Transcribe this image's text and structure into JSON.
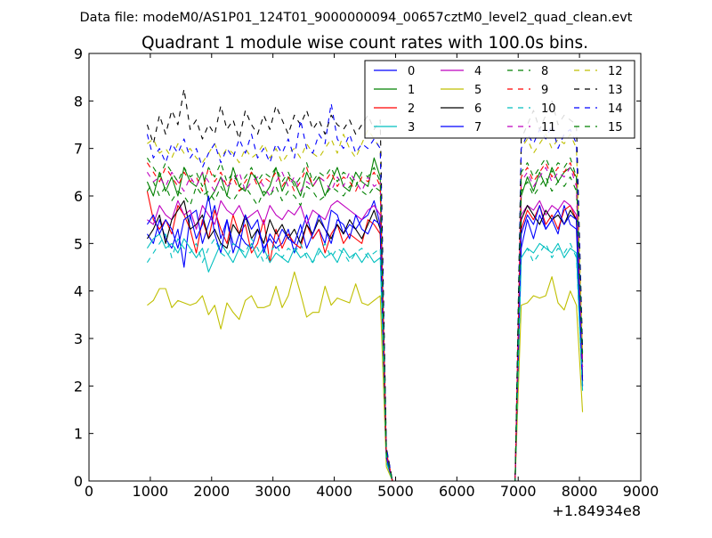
{
  "suptitle": "Data file: modeM0/AS1P01_124T01_9000000094_00657cztM0_level2_quad_clean.evt",
  "chart_data": {
    "type": "line",
    "title": "Quadrant 1 module wise count rates with 100.0s bins.",
    "xlabel": "",
    "ylabel": "",
    "x_offset_label": "+1.84934e8",
    "xlim": [
      0,
      9000
    ],
    "ylim": [
      0,
      9
    ],
    "x_ticks": [
      0,
      1000,
      2000,
      3000,
      4000,
      5000,
      6000,
      7000,
      8000,
      9000
    ],
    "x_tick_labels": [
      "0",
      "1000",
      "2000",
      "3000",
      "4000",
      "5000",
      "6000",
      "7000",
      "8000",
      "9000"
    ],
    "y_ticks": [
      0,
      1,
      2,
      3,
      4,
      5,
      6,
      7,
      8,
      9
    ],
    "y_tick_labels": [
      "0",
      "1",
      "2",
      "3",
      "4",
      "5",
      "6",
      "7",
      "8",
      "9"
    ],
    "grid": false,
    "legend_placement": "top-right",
    "legend_columns": 4,
    "x": [
      950,
      1050,
      1150,
      1250,
      1350,
      1450,
      1550,
      1650,
      1750,
      1850,
      1950,
      2050,
      2150,
      2250,
      2350,
      2450,
      2550,
      2650,
      2750,
      2850,
      2950,
      3050,
      3150,
      3250,
      3350,
      3450,
      3550,
      3650,
      3750,
      3850,
      3950,
      4050,
      4150,
      4250,
      4350,
      4450,
      4550,
      4650,
      4750,
      4850,
      4950,
      5950,
      6950,
      7050,
      7150,
      7250,
      7350,
      7450,
      7550,
      7650,
      7750,
      7850,
      7950,
      8050
    ],
    "series": [
      {
        "name": "0",
        "color": "#0000ff",
        "dash": "solid",
        "values": [
          5.2,
          5.0,
          5.5,
          5.1,
          4.9,
          5.3,
          4.5,
          5.6,
          5.7,
          5.0,
          5.4,
          5.8,
          5.1,
          5.5,
          4.8,
          5.2,
          5.0,
          4.9,
          5.3,
          4.9,
          5.1,
          4.9,
          5.0,
          5.3,
          4.8,
          5.2,
          5.6,
          5.1,
          5.3,
          5.0,
          5.7,
          5.6,
          5.2,
          5.4,
          5.3,
          5.5,
          5.6,
          5.9,
          5.4,
          0.5,
          0.0,
          0.0,
          0.0,
          4.9,
          5.5,
          5.1,
          5.6,
          5.3,
          5.5,
          5.2,
          5.8,
          5.4,
          5.3,
          2.0
        ]
      },
      {
        "name": "1",
        "color": "#008000",
        "dash": "solid",
        "values": [
          6.3,
          6.0,
          6.5,
          6.1,
          6.4,
          6.0,
          6.6,
          6.3,
          6.2,
          6.5,
          5.9,
          6.1,
          6.4,
          6.0,
          6.6,
          6.2,
          6.1,
          6.5,
          6.3,
          6.0,
          6.2,
          6.6,
          6.1,
          6.4,
          6.3,
          6.0,
          6.5,
          6.2,
          6.4,
          6.0,
          6.3,
          6.6,
          6.2,
          6.1,
          6.5,
          6.3,
          6.2,
          6.8,
          6.4,
          0.6,
          0.0,
          0.0,
          0.0,
          6.0,
          6.4,
          6.1,
          6.5,
          6.2,
          6.6,
          6.3,
          6.5,
          6.6,
          6.4,
          2.5
        ]
      },
      {
        "name": "2",
        "color": "#ff0000",
        "dash": "solid",
        "values": [
          6.1,
          5.5,
          5.3,
          5.5,
          5.2,
          5.8,
          5.6,
          5.3,
          4.8,
          5.5,
          5.1,
          5.7,
          5.3,
          5.0,
          5.6,
          5.2,
          5.4,
          4.8,
          5.0,
          5.5,
          4.6,
          5.3,
          4.9,
          5.2,
          5.0,
          4.9,
          5.4,
          5.1,
          5.3,
          4.8,
          5.2,
          5.4,
          5.0,
          5.2,
          5.1,
          5.0,
          5.5,
          5.4,
          5.2,
          0.5,
          0.0,
          0.0,
          0.0,
          5.3,
          5.7,
          5.5,
          5.8,
          5.4,
          5.6,
          5.3,
          5.7,
          5.8,
          5.5,
          2.1
        ]
      },
      {
        "name": "3",
        "color": "#00bfbf",
        "dash": "solid",
        "values": [
          4.9,
          5.1,
          5.2,
          4.9,
          5.0,
          4.8,
          5.1,
          4.9,
          4.7,
          4.9,
          4.4,
          4.7,
          5.0,
          4.8,
          4.6,
          4.9,
          4.7,
          5.0,
          4.7,
          4.9,
          4.6,
          4.8,
          4.7,
          4.6,
          4.9,
          4.7,
          4.8,
          4.6,
          4.9,
          4.7,
          4.8,
          4.6,
          4.9,
          4.7,
          4.8,
          4.6,
          4.8,
          4.6,
          4.7,
          0.4,
          0.0,
          0.0,
          0.0,
          4.7,
          4.9,
          4.8,
          5.0,
          4.9,
          4.8,
          5.0,
          4.7,
          4.9,
          4.8,
          1.9
        ]
      },
      {
        "name": "4",
        "color": "#bf00bf",
        "dash": "solid",
        "values": [
          5.5,
          5.4,
          5.8,
          5.6,
          5.5,
          5.9,
          5.6,
          5.7,
          5.3,
          5.8,
          5.6,
          5.4,
          5.9,
          5.7,
          5.6,
          5.8,
          5.5,
          5.6,
          5.7,
          5.4,
          5.8,
          5.6,
          5.5,
          5.7,
          5.6,
          5.8,
          5.4,
          5.7,
          5.6,
          5.5,
          5.8,
          5.9,
          5.8,
          5.7,
          5.6,
          5.5,
          5.7,
          5.8,
          5.6,
          0.5,
          0.0,
          0.0,
          0.0,
          5.6,
          5.8,
          5.7,
          5.9,
          5.6,
          5.8,
          5.7,
          5.9,
          5.8,
          5.6,
          2.2
        ]
      },
      {
        "name": "5",
        "color": "#bfbf00",
        "dash": "solid",
        "values": [
          3.7,
          3.8,
          4.05,
          4.05,
          3.65,
          3.8,
          3.75,
          3.7,
          3.75,
          3.9,
          3.5,
          3.7,
          3.2,
          3.75,
          3.55,
          3.4,
          3.8,
          3.9,
          3.65,
          3.65,
          3.7,
          4.1,
          3.65,
          3.9,
          4.4,
          3.95,
          3.45,
          3.55,
          3.55,
          4.1,
          3.7,
          3.85,
          3.8,
          3.75,
          4.15,
          3.75,
          3.7,
          3.8,
          3.9,
          0.3,
          0.0,
          0.0,
          0.0,
          3.7,
          3.75,
          3.9,
          3.85,
          3.9,
          4.3,
          3.75,
          3.6,
          4.0,
          3.7,
          1.45
        ]
      },
      {
        "name": "6",
        "color": "#000000",
        "dash": "solid",
        "values": [
          5.1,
          5.3,
          5.6,
          5.0,
          5.5,
          5.7,
          5.9,
          5.3,
          5.4,
          5.6,
          5.1,
          5.3,
          5.0,
          4.9,
          5.4,
          5.2,
          5.6,
          5.1,
          5.3,
          5.0,
          5.5,
          5.2,
          5.4,
          5.1,
          5.3,
          5.0,
          5.4,
          5.2,
          5.5,
          5.3,
          5.1,
          5.4,
          5.2,
          5.5,
          5.3,
          5.1,
          5.4,
          5.7,
          5.3,
          0.5,
          0.0,
          0.0,
          0.0,
          5.5,
          5.8,
          5.6,
          5.4,
          5.7,
          5.5,
          5.6,
          5.4,
          5.7,
          5.5,
          2.1
        ]
      },
      {
        "name": "7",
        "color": "#0000ff",
        "dash": "solid",
        "values": [
          5.4,
          5.6,
          5.2,
          5.5,
          5.3,
          4.9,
          5.5,
          5.6,
          5.1,
          5.4,
          6.0,
          5.2,
          4.8,
          5.5,
          5.0,
          4.9,
          5.6,
          5.3,
          5.5,
          4.8,
          5.2,
          5.0,
          5.3,
          5.1,
          5.0,
          5.4,
          4.9,
          5.2,
          5.6,
          5.3,
          5.0,
          5.5,
          5.4,
          5.1,
          5.6,
          5.3,
          5.2,
          5.5,
          5.4,
          0.5,
          0.0,
          0.0,
          0.0,
          5.2,
          5.6,
          5.4,
          5.8,
          5.3,
          5.5,
          5.7,
          5.4,
          5.6,
          5.5,
          2.0
        ]
      },
      {
        "name": "8",
        "color": "#008000",
        "dash": "dashed",
        "values": [
          6.1,
          6.3,
          6.0,
          6.2,
          5.9,
          6.1,
          6.0,
          5.8,
          6.2,
          6.0,
          6.1,
          5.9,
          6.2,
          6.0,
          5.9,
          6.1,
          6.2,
          6.0,
          5.8,
          6.1,
          6.0,
          6.2,
          5.9,
          6.1,
          6.0,
          5.8,
          6.2,
          6.1,
          5.9,
          6.0,
          6.2,
          6.1,
          6.0,
          6.2,
          6.3,
          6.1,
          6.0,
          6.2,
          6.1,
          0.6,
          0.0,
          0.0,
          0.0,
          6.1,
          6.3,
          6.0,
          6.2,
          6.4,
          6.1,
          6.3,
          6.2,
          6.4,
          6.1,
          2.4
        ]
      },
      {
        "name": "9",
        "color": "#ff0000",
        "dash": "dashed",
        "values": [
          6.7,
          6.5,
          6.3,
          6.6,
          6.4,
          6.2,
          6.5,
          6.3,
          6.4,
          6.1,
          6.6,
          6.3,
          6.5,
          6.2,
          6.4,
          6.1,
          6.3,
          6.5,
          6.2,
          6.4,
          6.3,
          6.5,
          6.2,
          6.4,
          6.1,
          6.3,
          6.6,
          6.2,
          6.4,
          6.3,
          6.5,
          6.2,
          6.4,
          6.3,
          6.1,
          6.4,
          6.3,
          6.5,
          6.2,
          0.6,
          0.0,
          0.0,
          0.0,
          6.4,
          6.6,
          6.3,
          6.5,
          6.7,
          6.4,
          6.6,
          6.5,
          6.7,
          6.3,
          2.5
        ]
      },
      {
        "name": "10",
        "color": "#00bfbf",
        "dash": "dashed",
        "values": [
          4.6,
          4.8,
          5.0,
          5.2,
          4.7,
          5.1,
          4.9,
          4.8,
          5.0,
          4.6,
          4.9,
          5.1,
          4.8,
          4.7,
          5.0,
          4.9,
          4.8,
          5.1,
          4.9,
          4.6,
          4.8,
          5.0,
          4.7,
          4.9,
          4.8,
          5.0,
          4.7,
          4.6,
          4.8,
          5.0,
          4.7,
          4.9,
          4.8,
          4.6,
          4.8,
          4.9,
          4.7,
          4.8,
          4.9,
          0.4,
          0.0,
          0.0,
          0.0,
          4.7,
          4.9,
          4.6,
          4.8,
          5.0,
          4.7,
          4.9,
          4.8,
          5.0,
          4.7,
          1.9
        ]
      },
      {
        "name": "11",
        "color": "#bf00bf",
        "dash": "dashed",
        "values": [
          6.5,
          6.3,
          6.4,
          6.2,
          6.5,
          6.3,
          6.1,
          6.4,
          6.2,
          6.5,
          6.3,
          6.1,
          6.4,
          6.2,
          6.3,
          6.5,
          6.1,
          6.3,
          6.4,
          6.2,
          6.0,
          6.3,
          6.5,
          6.2,
          6.4,
          6.1,
          6.3,
          6.2,
          6.4,
          6.3,
          6.1,
          6.4,
          6.2,
          6.5,
          6.3,
          6.1,
          6.4,
          6.2,
          6.3,
          0.6,
          0.0,
          0.0,
          0.0,
          6.3,
          6.5,
          6.2,
          6.4,
          6.6,
          6.3,
          6.5,
          6.4,
          6.6,
          6.2,
          2.4
        ]
      },
      {
        "name": "12",
        "color": "#bfbf00",
        "dash": "dashed",
        "values": [
          7.1,
          7.2,
          6.9,
          7.0,
          6.8,
          7.1,
          6.9,
          7.0,
          6.8,
          6.7,
          6.9,
          7.1,
          6.8,
          7.0,
          6.9,
          6.7,
          7.0,
          6.8,
          6.9,
          7.1,
          6.8,
          7.0,
          6.7,
          6.9,
          7.0,
          6.8,
          7.1,
          6.9,
          6.8,
          7.0,
          7.2,
          6.9,
          7.3,
          7.0,
          6.8,
          7.1,
          7.4,
          7.2,
          7.0,
          0.7,
          0.0,
          0.0,
          0.0,
          7.0,
          7.2,
          6.9,
          7.1,
          7.3,
          7.0,
          7.2,
          7.1,
          7.3,
          7.0,
          2.7
        ]
      },
      {
        "name": "13",
        "color": "#000000",
        "dash": "dashed",
        "values": [
          7.5,
          7.1,
          7.7,
          7.3,
          7.8,
          7.5,
          8.25,
          7.4,
          7.6,
          7.2,
          7.5,
          7.3,
          7.9,
          7.4,
          7.6,
          7.2,
          7.8,
          7.5,
          7.3,
          7.7,
          7.4,
          7.9,
          7.6,
          7.3,
          7.7,
          7.5,
          7.8,
          7.4,
          7.6,
          7.3,
          7.7,
          7.5,
          7.4,
          7.6,
          7.3,
          7.5,
          7.7,
          7.4,
          7.6,
          0.7,
          0.0,
          0.0,
          0.0,
          7.2,
          7.5,
          7.8,
          7.4,
          7.7,
          8.0,
          7.5,
          7.7,
          7.6,
          7.5,
          2.8
        ]
      },
      {
        "name": "14",
        "color": "#0000ff",
        "dash": "dashed",
        "values": [
          7.3,
          6.8,
          7.0,
          6.7,
          7.1,
          6.9,
          7.2,
          6.8,
          7.0,
          6.6,
          6.9,
          7.1,
          6.7,
          7.0,
          6.8,
          7.2,
          6.9,
          7.3,
          6.8,
          7.0,
          6.7,
          7.1,
          6.9,
          7.2,
          6.8,
          7.6,
          7.0,
          6.9,
          7.3,
          7.1,
          7.95,
          7.2,
          7.0,
          7.3,
          6.9,
          7.1,
          7.0,
          7.2,
          7.0,
          0.7,
          0.0,
          0.0,
          0.0,
          7.0,
          7.3,
          7.1,
          7.4,
          7.2,
          7.5,
          7.0,
          7.3,
          7.4,
          7.1,
          2.7
        ]
      },
      {
        "name": "15",
        "color": "#008000",
        "dash": "dashed",
        "values": [
          6.8,
          6.6,
          6.4,
          6.7,
          6.5,
          6.3,
          6.6,
          6.4,
          6.5,
          6.2,
          6.6,
          6.4,
          6.7,
          6.3,
          6.5,
          6.2,
          6.4,
          6.6,
          6.3,
          6.5,
          6.4,
          6.6,
          6.3,
          6.5,
          6.2,
          6.4,
          6.7,
          6.3,
          6.5,
          6.4,
          6.6,
          6.3,
          6.5,
          6.4,
          6.2,
          6.5,
          6.4,
          6.6,
          6.3,
          0.6,
          0.0,
          0.0,
          0.0,
          6.5,
          6.7,
          6.4,
          6.6,
          6.8,
          6.5,
          6.7,
          6.6,
          6.8,
          6.4,
          2.6
        ]
      }
    ]
  }
}
